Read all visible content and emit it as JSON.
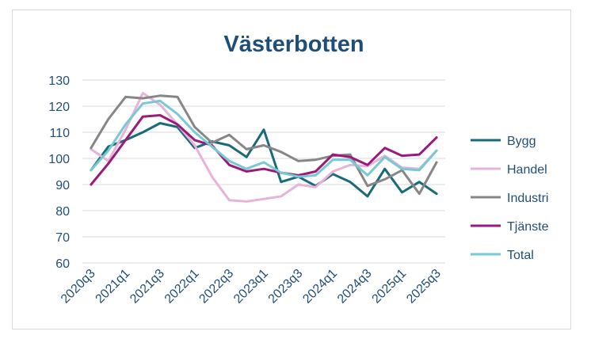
{
  "chart_data": {
    "type": "line",
    "title": "Västerbotten",
    "xlabel": "",
    "ylabel": "",
    "ylim": [
      60,
      130
    ],
    "yticks": [
      60,
      70,
      80,
      90,
      100,
      110,
      120,
      130
    ],
    "grid": true,
    "legend": "right",
    "categories": [
      "2020q3",
      "2020q4",
      "2021q1",
      "2021q2",
      "2021q3",
      "2021q4",
      "2022q1",
      "2022q2",
      "2022q3",
      "2022q4",
      "2023q1",
      "2023q2",
      "2023q3",
      "2023q4",
      "2024q1",
      "2024q2",
      "2024q3",
      "2024q4",
      "2025q1",
      "2025q2",
      "2025q3"
    ],
    "xtick_labels": [
      "2020q3",
      "2021q1",
      "2021q3",
      "2022q1",
      "2022q3",
      "2023q1",
      "2023q3",
      "2024q1",
      "2024q3",
      "2025q1",
      "2025q3"
    ],
    "series": [
      {
        "name": "Bygg",
        "color": "#1a6b7a",
        "values": [
          95.5,
          104.5,
          107,
          110,
          113.5,
          112,
          104,
          106.5,
          105,
          100.5,
          111,
          91,
          93,
          89.5,
          94,
          91,
          85.5,
          96,
          87,
          91,
          86.5
        ]
      },
      {
        "name": "Handel",
        "color": "#e7b3d9",
        "values": [
          103.5,
          99,
          111,
          125,
          120.5,
          113,
          105,
          93,
          84,
          83.5,
          84.5,
          85.5,
          90,
          89,
          95,
          97.5,
          97,
          101,
          96.5,
          96,
          103
        ]
      },
      {
        "name": "Industri",
        "color": "#868686",
        "values": [
          104,
          115,
          123.5,
          123,
          124,
          123.5,
          112,
          106,
          109,
          103.5,
          105,
          102.5,
          99,
          99.5,
          101,
          101.5,
          89.5,
          92,
          95.5,
          86.5,
          98.5
        ]
      },
      {
        "name": "Tjänste",
        "color": "#9b1a79",
        "values": [
          90,
          98,
          107,
          116,
          116.5,
          113,
          107,
          105,
          97.5,
          95,
          96,
          94.5,
          93.5,
          95,
          101.5,
          100.5,
          97.5,
          104,
          101,
          101.5,
          108
        ]
      },
      {
        "name": "Total",
        "color": "#77c9d4",
        "values": [
          95.5,
          103,
          113,
          121,
          122,
          117,
          110,
          104.5,
          99,
          96,
          98.5,
          94.5,
          93,
          93.5,
          99.5,
          99.5,
          93.5,
          100.5,
          96,
          95.5,
          103
        ]
      }
    ]
  }
}
